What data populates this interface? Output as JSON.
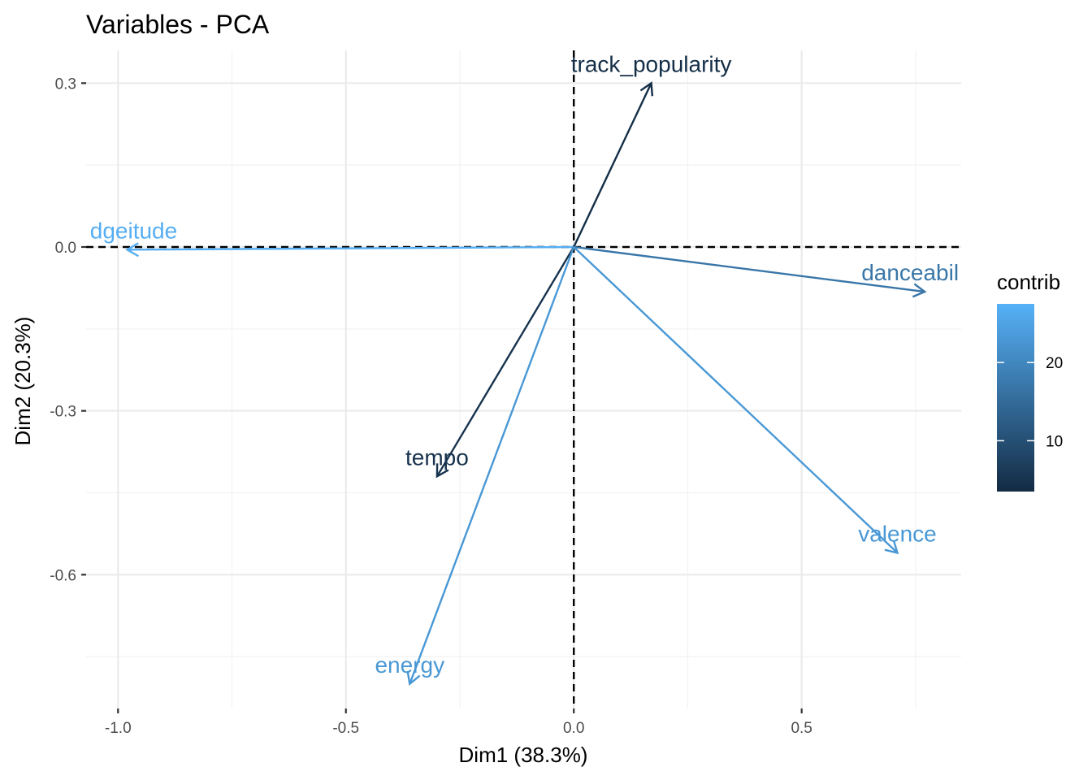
{
  "chart_data": {
    "type": "scatter",
    "subtype": "pca-variable-correlation-arrows",
    "title": "Variables - PCA",
    "xlabel": "Dim1 (38.3%)",
    "ylabel": "Dim2 (20.3%)",
    "xlim": [
      -1.07,
      0.85
    ],
    "ylim": [
      -0.845,
      0.36
    ],
    "x_ticks": [
      -1.0,
      -0.5,
      0.0,
      0.5
    ],
    "x_tick_labels": [
      "-1.0",
      "-0.5",
      "0.0",
      "0.5"
    ],
    "y_ticks": [
      0.3,
      0.0,
      -0.3,
      -0.6
    ],
    "y_tick_labels": [
      "0.3",
      "0.0",
      "-0.3",
      "-0.6"
    ],
    "x_minor": [
      -0.75,
      -0.25,
      0.25,
      0.75
    ],
    "y_minor": [
      0.15,
      -0.15,
      -0.45,
      -0.75
    ],
    "grid": true,
    "reference_lines": {
      "x": 0,
      "y": 0
    },
    "variables": [
      {
        "name": "track_popularity",
        "x": 0.17,
        "y": 0.3,
        "contrib": 4
      },
      {
        "name": "dgeitude",
        "x": -0.98,
        "y": -0.005,
        "contrib": 27
      },
      {
        "name": "danceabil",
        "x": 0.77,
        "y": -0.082,
        "contrib": 17
      },
      {
        "name": "tempo",
        "x": -0.3,
        "y": -0.42,
        "contrib": 5
      },
      {
        "name": "valence",
        "x": 0.71,
        "y": -0.56,
        "contrib": 23
      },
      {
        "name": "energy",
        "x": -0.36,
        "y": -0.8,
        "contrib": 23
      }
    ],
    "legend": {
      "title": "contrib",
      "position": "right",
      "range": [
        3.5,
        27.5
      ],
      "ticks": [
        10,
        20
      ],
      "tick_labels": [
        "10",
        "20"
      ],
      "color_low": "#132b43",
      "color_high": "#56b1f7"
    }
  }
}
